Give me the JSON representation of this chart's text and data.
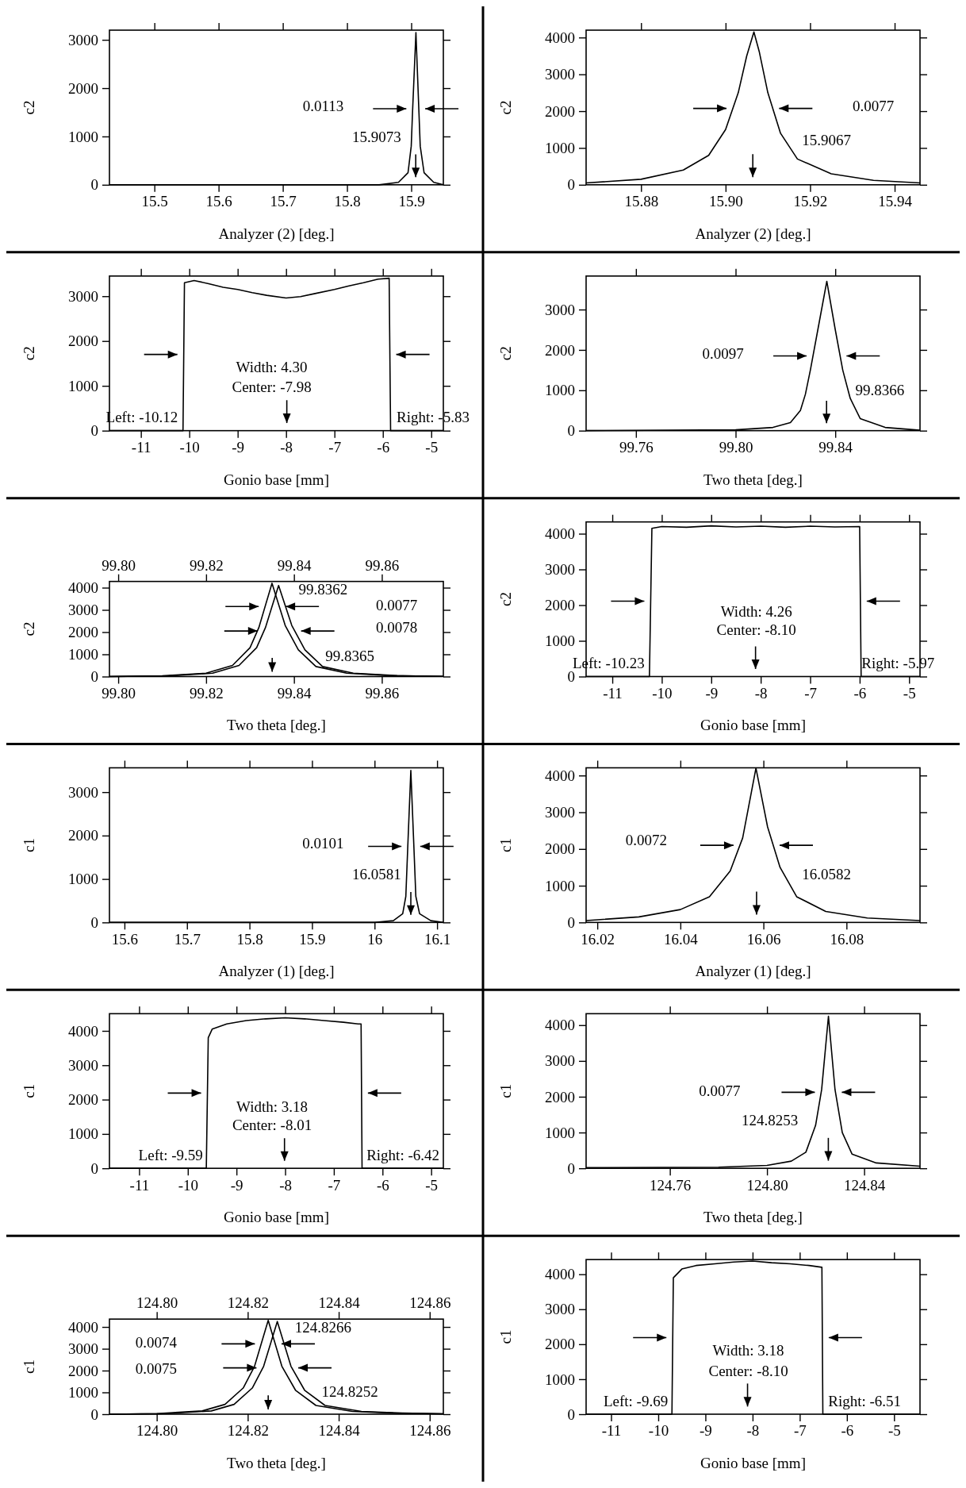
{
  "chart_data": [
    {
      "type": "line",
      "xlabel": "Analyzer (2) [deg.]",
      "ylabel": "c2",
      "xlim": [
        15.43,
        15.95
      ],
      "xticks": [
        15.5,
        15.6,
        15.7,
        15.8,
        15.9
      ],
      "ylim": [
        0,
        3200
      ],
      "yticks": [
        0,
        1000,
        2000,
        3000
      ],
      "series": [
        {
          "color": "#000000",
          "x": [
            15.43,
            15.85,
            15.88,
            15.895,
            15.9,
            15.902,
            15.9073,
            15.912,
            15.914,
            15.92,
            15.935,
            15.95
          ],
          "values": [
            0,
            0,
            50,
            250,
            800,
            1500,
            3150,
            1500,
            800,
            250,
            50,
            0
          ]
        }
      ],
      "annotations": [
        "0.0113",
        "15.9073"
      ]
    },
    {
      "type": "line",
      "xlabel": "Analyzer (2) [deg.]",
      "ylabel": "c2",
      "xlim": [
        15.867,
        15.946
      ],
      "xticks": [
        15.88,
        {
          "value": 15.9,
          "label": "15.90"
        },
        15.92,
        15.94
      ],
      "ylim": [
        0,
        4200
      ],
      "yticks": [
        0,
        1000,
        2000,
        3000,
        4000
      ],
      "series": [
        {
          "color": "#000000",
          "x": [
            15.867,
            15.88,
            15.89,
            15.896,
            15.9,
            15.903,
            15.905,
            15.9067,
            15.908,
            15.91,
            15.913,
            15.917,
            15.925,
            15.935,
            15.946
          ],
          "values": [
            50,
            150,
            400,
            800,
            1500,
            2500,
            3500,
            4150,
            3600,
            2500,
            1400,
            700,
            300,
            120,
            50
          ]
        }
      ],
      "annotations": [
        "0.0077",
        "15.9067"
      ]
    },
    {
      "type": "line",
      "xlabel": "Gonio base [mm]",
      "ylabel": "c2",
      "xlim": [
        -11.65,
        -4.75
      ],
      "xticks": [
        -11,
        -10,
        -9,
        -8,
        -7,
        -6,
        -5
      ],
      "ylim": [
        0,
        3450
      ],
      "yticks": [
        0,
        1000,
        2000,
        3000
      ],
      "series": [
        {
          "color": "#000000",
          "x": [
            -11.65,
            -10.13,
            -10.1,
            -9.9,
            -9.6,
            -9.3,
            -9.0,
            -8.7,
            -8.4,
            -8.0,
            -7.7,
            -7.4,
            -7.0,
            -6.7,
            -6.4,
            -6.1,
            -5.87,
            -5.84,
            -4.75
          ],
          "values": [
            0,
            0,
            3300,
            3350,
            3280,
            3200,
            3150,
            3080,
            3020,
            2960,
            2990,
            3060,
            3150,
            3230,
            3300,
            3380,
            3400,
            0,
            0
          ]
        }
      ],
      "annotations": [
        "Width: 4.30",
        "Center: -7.98",
        "Left: -10.12",
        "Right: -5.83"
      ]
    },
    {
      "type": "line",
      "xlabel": "Two theta [deg.]",
      "ylabel": "c2",
      "xlim": [
        99.74,
        99.874
      ],
      "xticks": [
        99.76,
        {
          "value": 99.8,
          "label": "99.80"
        },
        99.84
      ],
      "ylim": [
        0,
        3830
      ],
      "yticks": [
        0,
        1000,
        2000,
        3000
      ],
      "series": [
        {
          "color": "#000000",
          "x": [
            99.74,
            99.8,
            99.815,
            99.822,
            99.826,
            99.828,
            99.83,
            99.833,
            99.8366,
            99.84,
            99.843,
            99.846,
            99.85,
            99.86,
            99.874
          ],
          "values": [
            0,
            20,
            80,
            200,
            500,
            900,
            1500,
            2500,
            3700,
            2500,
            1500,
            800,
            300,
            80,
            10
          ]
        }
      ],
      "annotations": [
        "0.0097",
        "99.8366"
      ]
    },
    {
      "type": "line",
      "xlabel": "Two theta [deg.]",
      "ylabel": "c2",
      "xlim": [
        99.798,
        99.874
      ],
      "xticks": [
        {
          "value": 99.8,
          "label": "99.80"
        },
        99.82,
        99.84,
        99.86
      ],
      "x2lim": [
        99.798,
        99.874
      ],
      "x2ticks": [
        {
          "value": 99.8,
          "label": "99.80"
        },
        99.82,
        99.84,
        99.86
      ],
      "ylim": [
        0,
        4280
      ],
      "yticks": [
        0,
        1000,
        2000,
        3000,
        4000
      ],
      "series": [
        {
          "color": "#000000",
          "x": [
            99.798,
            99.81,
            99.82,
            99.826,
            99.83,
            99.832,
            99.835,
            99.838,
            99.841,
            99.845,
            99.852,
            99.862,
            99.874
          ],
          "values": [
            0,
            30,
            150,
            500,
            1300,
            2200,
            4200,
            2300,
            1200,
            450,
            150,
            40,
            10
          ]
        },
        {
          "color": "#000000",
          "x": [
            99.798,
            99.8115,
            99.8215,
            99.8275,
            99.8315,
            99.8335,
            99.8365,
            99.8395,
            99.8425,
            99.8465,
            99.8535,
            99.8635,
            99.874
          ],
          "values": [
            0,
            30,
            150,
            500,
            1300,
            2200,
            4100,
            2300,
            1200,
            450,
            150,
            40,
            10
          ]
        }
      ],
      "annotations": [
        "99.8362",
        "99.8365",
        "0.0077",
        "0.0078"
      ]
    },
    {
      "type": "line",
      "xlabel": "Gonio base [mm]",
      "ylabel": "c2",
      "xlim": [
        -11.53,
        -4.78
      ],
      "xticks": [
        -11,
        -10,
        -9,
        -8,
        -7,
        -6,
        -5
      ],
      "ylim": [
        0,
        4330
      ],
      "yticks": [
        0,
        1000,
        2000,
        3000,
        4000
      ],
      "series": [
        {
          "color": "#000000",
          "x": [
            -11.53,
            -10.25,
            -10.2,
            -10.0,
            -9.5,
            -9.0,
            -8.5,
            -8.0,
            -7.5,
            -7.0,
            -6.5,
            -6.0,
            -5.97,
            -4.78
          ],
          "values": [
            0,
            0,
            4150,
            4200,
            4180,
            4220,
            4190,
            4210,
            4180,
            4210,
            4190,
            4200,
            0,
            0
          ]
        }
      ],
      "annotations": [
        "Width: 4.26",
        "Center: -8.10",
        "Left: -10.23",
        "Right: -5.97"
      ]
    },
    {
      "type": "line",
      "xlabel": "Analyzer (1) [deg.]",
      "ylabel": "c1",
      "xlim": [
        15.576,
        16.11
      ],
      "xticks": [
        15.6,
        15.7,
        15.8,
        15.9,
        16.0,
        16.1
      ],
      "ylim": [
        0,
        3560
      ],
      "yticks": [
        0,
        1000,
        2000,
        3000
      ],
      "series": [
        {
          "color": "#000000",
          "x": [
            15.576,
            16.0,
            16.03,
            16.045,
            16.05,
            16.053,
            16.058,
            16.063,
            16.066,
            16.072,
            16.09,
            16.11
          ],
          "values": [
            0,
            0,
            40,
            200,
            600,
            1700,
            3500,
            1700,
            600,
            200,
            40,
            0
          ]
        }
      ],
      "annotations": [
        "0.0101",
        "16.0581"
      ]
    },
    {
      "type": "line",
      "xlabel": "Analyzer (1) [deg.]",
      "ylabel": "c1",
      "xlim": [
        16.0173,
        16.0977
      ],
      "xticks": [
        16.02,
        16.04,
        16.06,
        16.08
      ],
      "ylim": [
        0,
        4210
      ],
      "yticks": [
        0,
        1000,
        2000,
        3000,
        4000
      ],
      "series": [
        {
          "color": "#000000",
          "x": [
            16.0173,
            16.03,
            16.04,
            16.047,
            16.052,
            16.055,
            16.0582,
            16.061,
            16.064,
            16.068,
            16.075,
            16.085,
            16.0977
          ],
          "values": [
            50,
            150,
            350,
            700,
            1400,
            2300,
            4200,
            2600,
            1500,
            700,
            300,
            120,
            50
          ]
        }
      ],
      "annotations": [
        "0.0072",
        "16.0582"
      ]
    },
    {
      "type": "line",
      "xlabel": "Gonio base [mm]",
      "ylabel": "c1",
      "xlim": [
        -11.61,
        -4.75
      ],
      "xticks": [
        -11,
        -10,
        -9,
        -8,
        -7,
        -6,
        -5
      ],
      "ylim": [
        0,
        4500
      ],
      "yticks": [
        0,
        1000,
        2000,
        3000,
        4000
      ],
      "series": [
        {
          "color": "#000000",
          "x": [
            -11.61,
            -9.62,
            -9.58,
            -9.5,
            -9.2,
            -8.8,
            -8.4,
            -8.0,
            -7.6,
            -7.2,
            -6.8,
            -6.5,
            -6.44,
            -6.42,
            -4.75
          ],
          "values": [
            0,
            0,
            3800,
            4050,
            4200,
            4300,
            4350,
            4380,
            4350,
            4300,
            4250,
            4200,
            4200,
            0,
            0
          ]
        }
      ],
      "annotations": [
        "Width: 3.18",
        "Center: -8.01",
        "Left: -9.59",
        "Right: -6.42"
      ]
    },
    {
      "type": "line",
      "xlabel": "Two theta [deg.]",
      "ylabel": "c1",
      "xlim": [
        124.7255,
        124.863
      ],
      "xticks": [
        124.76,
        {
          "value": 124.8,
          "label": "124.80"
        },
        124.84
      ],
      "ylim": [
        0,
        4320
      ],
      "yticks": [
        0,
        1000,
        2000,
        3000,
        4000
      ],
      "series": [
        {
          "color": "#000000",
          "x": [
            124.7255,
            124.78,
            124.8,
            124.81,
            124.816,
            124.82,
            124.8225,
            124.8253,
            124.828,
            124.831,
            124.835,
            124.845,
            124.863
          ],
          "values": [
            20,
            30,
            80,
            200,
            450,
            1200,
            2200,
            4250,
            2200,
            1000,
            400,
            150,
            60
          ]
        }
      ],
      "annotations": [
        "0.0077",
        "124.8253"
      ]
    },
    {
      "type": "line",
      "xlabel": "Two theta [deg.]",
      "ylabel": "c1",
      "xlim": [
        124.7896,
        124.863
      ],
      "xticks": [
        {
          "value": 124.8,
          "label": "124.80"
        },
        124.82,
        124.84,
        124.86
      ],
      "x2lim": [
        124.7896,
        124.863
      ],
      "x2ticks": [
        {
          "value": 124.8,
          "label": "124.80"
        },
        124.82,
        124.84,
        124.86
      ],
      "ylim": [
        0,
        4360
      ],
      "yticks": [
        0,
        1000,
        2000,
        3000,
        4000
      ],
      "series": [
        {
          "color": "#000000",
          "x": [
            124.7896,
            124.8,
            124.81,
            124.815,
            124.819,
            124.8215,
            124.8245,
            124.8275,
            124.8305,
            124.835,
            124.843,
            124.852,
            124.863
          ],
          "values": [
            0,
            30,
            150,
            450,
            1200,
            2200,
            4300,
            2200,
            1100,
            400,
            130,
            50,
            20
          ]
        },
        {
          "color": "#000000",
          "x": [
            124.7896,
            124.802,
            124.812,
            124.817,
            124.821,
            124.8235,
            124.8265,
            124.8295,
            124.8325,
            124.837,
            124.845,
            124.854,
            124.863
          ],
          "values": [
            0,
            30,
            150,
            450,
            1200,
            2200,
            4250,
            2200,
            1100,
            400,
            130,
            50,
            20
          ]
        }
      ],
      "annotations": [
        "124.8266",
        "124.8252",
        "0.0074",
        "0.0075"
      ]
    },
    {
      "type": "line",
      "xlabel": "Gonio base [mm]",
      "ylabel": "c1",
      "xlim": [
        -11.53,
        -4.45
      ],
      "xticks": [
        -11,
        -10,
        -9,
        -8,
        -7,
        -6,
        -5
      ],
      "ylim": [
        0,
        4420
      ],
      "yticks": [
        0,
        1000,
        2000,
        3000,
        4000
      ],
      "series": [
        {
          "color": "#000000",
          "x": [
            -11.53,
            -9.71,
            -9.68,
            -9.5,
            -9.2,
            -8.8,
            -8.4,
            -8.0,
            -7.6,
            -7.2,
            -6.8,
            -6.53,
            -6.51,
            -4.45
          ],
          "values": [
            0,
            0,
            3900,
            4150,
            4250,
            4300,
            4350,
            4380,
            4330,
            4300,
            4250,
            4200,
            0,
            0
          ]
        }
      ],
      "annotations": [
        "Width: 3.18",
        "Center: -8.10",
        "Left: -9.69",
        "Right: -6.51"
      ]
    }
  ]
}
